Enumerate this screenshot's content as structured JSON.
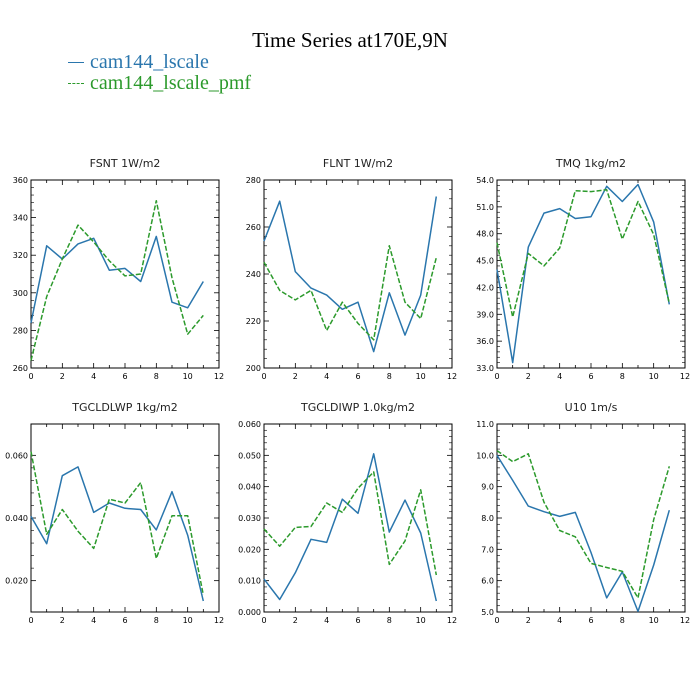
{
  "title": "Time Series at170E,9N",
  "colors": {
    "series1": "#2a76ad",
    "series2": "#2c9a2c"
  },
  "legend": [
    {
      "name": "cam144_lscale",
      "color": "#2a76ad",
      "dash": "solid"
    },
    {
      "name": "cam144_lscale_pmf",
      "color": "#2c9a2c",
      "dash": "dashed"
    }
  ],
  "chart_data": [
    {
      "type": "line",
      "title": "FSNT  1W/m2",
      "x": [
        0,
        1,
        2,
        3,
        4,
        5,
        6,
        7,
        8,
        9,
        10,
        11
      ],
      "xlim": [
        0,
        12
      ],
      "xticks": [
        "0",
        "2",
        "4",
        "6",
        "8",
        "10",
        "12"
      ],
      "ylim": [
        260,
        360
      ],
      "yticks": [
        "260",
        "280",
        "300",
        "320",
        "340",
        "360"
      ],
      "series": [
        {
          "name": "cam144_lscale",
          "values": [
            284,
            325,
            318,
            326,
            329,
            312,
            313,
            306,
            330,
            295,
            292,
            306
          ]
        },
        {
          "name": "cam144_lscale_pmf",
          "values": [
            264,
            298,
            318,
            336,
            327,
            317,
            309,
            310,
            349,
            308,
            278,
            288
          ]
        }
      ]
    },
    {
      "type": "line",
      "title": "FLNT  1W/m2",
      "x": [
        0,
        1,
        2,
        3,
        4,
        5,
        6,
        7,
        8,
        9,
        10,
        11
      ],
      "xlim": [
        0,
        12
      ],
      "xticks": [
        "0",
        "2",
        "4",
        "6",
        "8",
        "10",
        "12"
      ],
      "ylim": [
        200,
        280
      ],
      "yticks": [
        "200",
        "220",
        "240",
        "260",
        "280"
      ],
      "series": [
        {
          "name": "cam144_lscale",
          "values": [
            254,
            271,
            241,
            234,
            231,
            225,
            228,
            207,
            232,
            214,
            231,
            273
          ]
        },
        {
          "name": "cam144_lscale_pmf",
          "values": [
            245,
            233,
            229,
            233,
            216,
            228,
            219,
            212,
            252,
            228,
            221,
            247
          ]
        }
      ]
    },
    {
      "type": "line",
      "title": "TMQ  1kg/m2",
      "x": [
        0,
        1,
        2,
        3,
        4,
        5,
        6,
        7,
        8,
        9,
        10,
        11
      ],
      "xlim": [
        0,
        12
      ],
      "xticks": [
        "0",
        "2",
        "4",
        "6",
        "8",
        "10",
        "12"
      ],
      "ylim": [
        33,
        54
      ],
      "yticks": [
        "33.0",
        "36.0",
        "39.0",
        "42.0",
        "45.0",
        "48.0",
        "51.0",
        "54.0"
      ],
      "series": [
        {
          "name": "cam144_lscale",
          "values": [
            44.0,
            33.6,
            46.5,
            50.3,
            50.8,
            49.7,
            49.9,
            53.3,
            51.6,
            53.5,
            49.3,
            40.1
          ]
        },
        {
          "name": "cam144_lscale_pmf",
          "values": [
            47.0,
            38.7,
            45.8,
            44.4,
            46.4,
            52.8,
            52.7,
            52.9,
            47.4,
            51.6,
            47.9,
            40.2
          ]
        }
      ]
    },
    {
      "type": "line",
      "title": "TGCLDLWP  1kg/m2",
      "x": [
        0,
        1,
        2,
        3,
        4,
        5,
        6,
        7,
        8,
        9,
        10,
        11
      ],
      "xlim": [
        0,
        12
      ],
      "xticks": [
        "0",
        "2",
        "4",
        "6",
        "8",
        "10",
        "12"
      ],
      "ylim": [
        0.01,
        0.07
      ],
      "yticks": [
        "0.020",
        "0.040",
        "0.060"
      ],
      "yticks_values": [
        0.02,
        0.04,
        0.06
      ],
      "series": [
        {
          "name": "cam144_lscale",
          "values": [
            0.0405,
            0.0318,
            0.0535,
            0.0563,
            0.0418,
            0.0448,
            0.0431,
            0.0427,
            0.0362,
            0.0484,
            0.0345,
            0.0135
          ]
        },
        {
          "name": "cam144_lscale_pmf",
          "values": [
            0.0612,
            0.0348,
            0.0427,
            0.0358,
            0.0303,
            0.046,
            0.0448,
            0.0513,
            0.0271,
            0.0407,
            0.0407,
            0.0155
          ]
        }
      ]
    },
    {
      "type": "line",
      "title": "TGCLDIWP  1.0kg/m2",
      "x": [
        0,
        1,
        2,
        3,
        4,
        5,
        6,
        7,
        8,
        9,
        10,
        11
      ],
      "xlim": [
        0,
        12
      ],
      "xticks": [
        "0",
        "2",
        "4",
        "6",
        "8",
        "10",
        "12"
      ],
      "ylim": [
        0.0,
        0.06
      ],
      "yticks": [
        "0.000",
        "0.010",
        "0.020",
        "0.030",
        "0.040",
        "0.050",
        "0.060"
      ],
      "series": [
        {
          "name": "cam144_lscale",
          "values": [
            0.0105,
            0.004,
            0.0125,
            0.0232,
            0.0222,
            0.036,
            0.0315,
            0.0505,
            0.0255,
            0.0357,
            0.0252,
            0.0035
          ]
        },
        {
          "name": "cam144_lscale_pmf",
          "values": [
            0.0265,
            0.021,
            0.027,
            0.0273,
            0.0348,
            0.0318,
            0.0395,
            0.0447,
            0.0152,
            0.0227,
            0.039,
            0.0118
          ]
        }
      ]
    },
    {
      "type": "line",
      "title": "U10  1m/s",
      "x": [
        0,
        1,
        2,
        3,
        4,
        5,
        6,
        7,
        8,
        9,
        10,
        11
      ],
      "xlim": [
        0,
        12
      ],
      "xticks": [
        "0",
        "2",
        "4",
        "6",
        "8",
        "10",
        "12"
      ],
      "ylim": [
        5.0,
        11.0
      ],
      "yticks": [
        "5.0",
        "6.0",
        "7.0",
        "8.0",
        "9.0",
        "10.0",
        "11.0"
      ],
      "series": [
        {
          "name": "cam144_lscale",
          "values": [
            10.0,
            9.2,
            8.38,
            8.2,
            8.05,
            8.18,
            6.9,
            5.45,
            6.28,
            5.02,
            6.5,
            8.25
          ]
        },
        {
          "name": "cam144_lscale_pmf",
          "values": [
            10.15,
            9.8,
            10.05,
            8.5,
            7.6,
            7.4,
            6.55,
            6.42,
            6.3,
            5.45,
            7.95,
            9.65
          ]
        }
      ]
    }
  ]
}
